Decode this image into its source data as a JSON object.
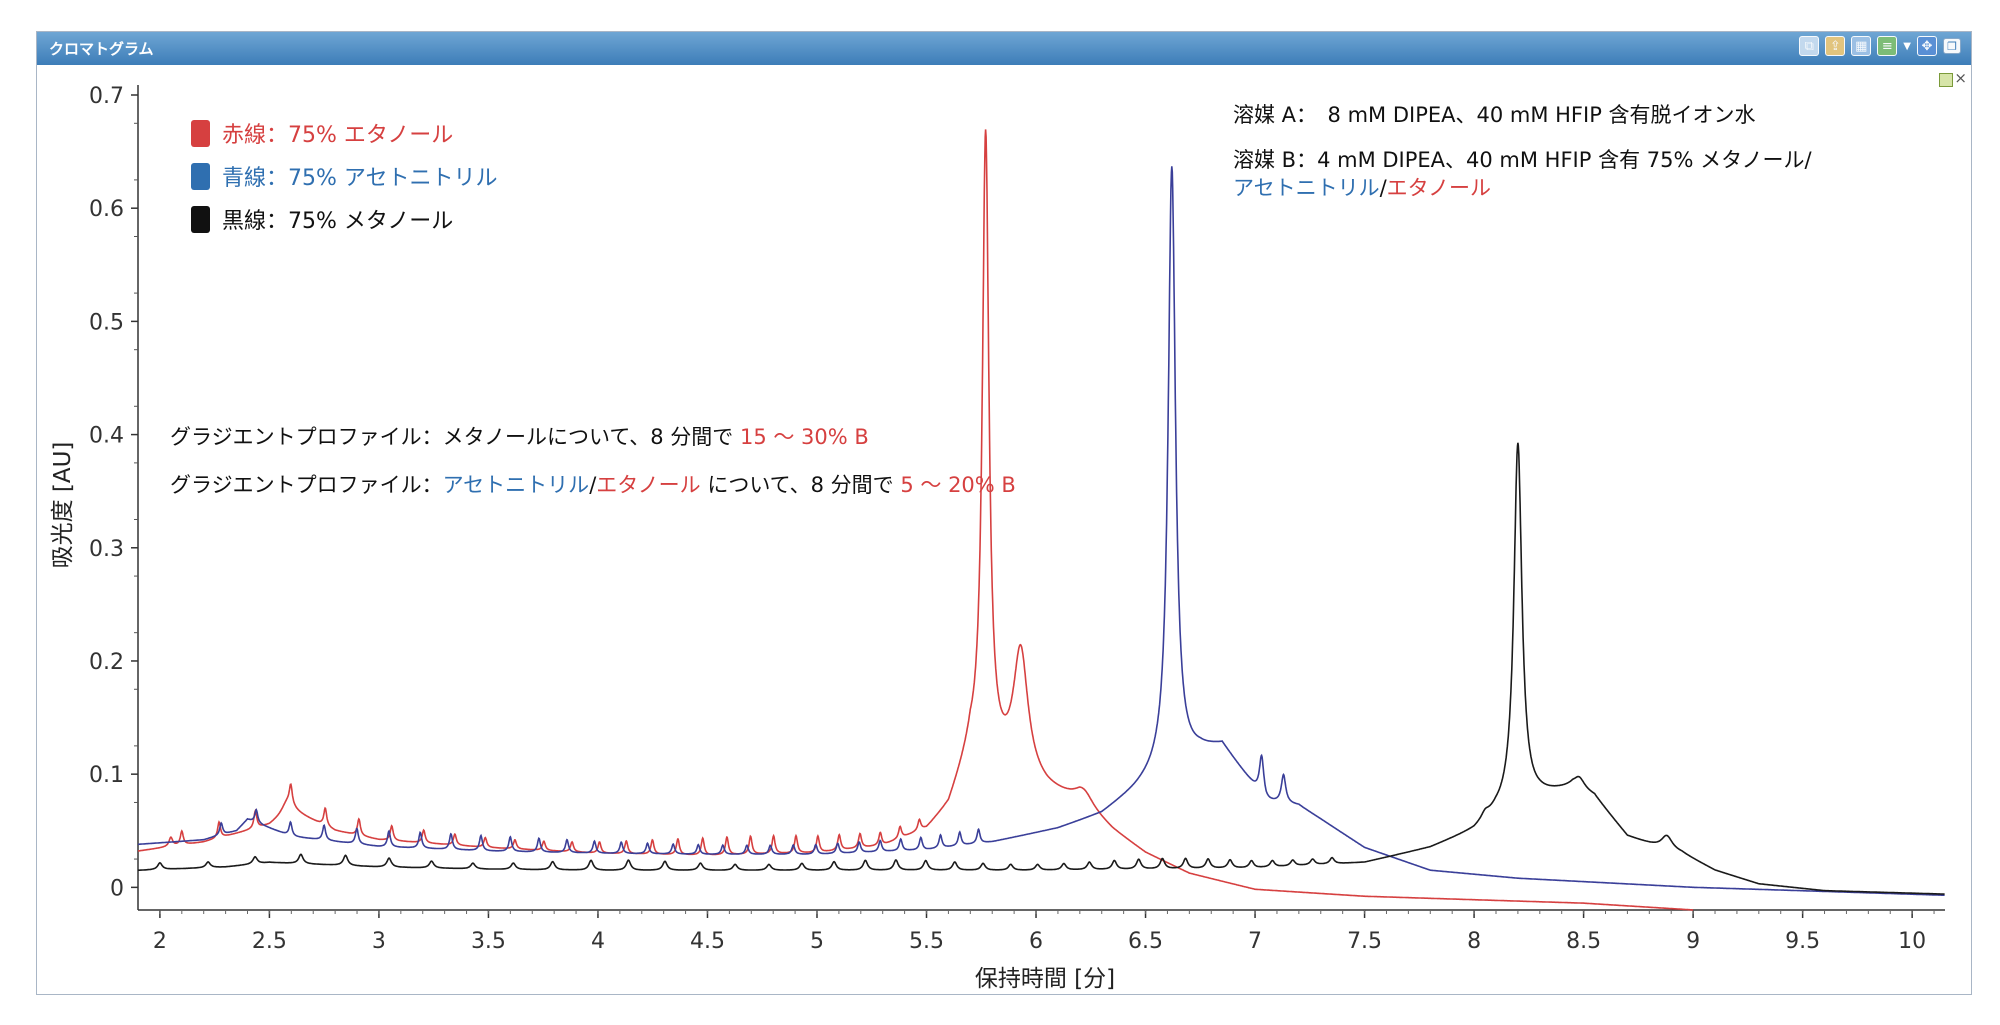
{
  "window": {
    "title": "クロマトグラム",
    "toolbar_icons": [
      "copy-icon",
      "export-icon",
      "table-icon",
      "layers-icon",
      "move-icon",
      "restore-icon"
    ]
  },
  "chart_data": {
    "type": "line",
    "xlabel": "保持時間 [分]",
    "ylabel": "吸光度 [AU]",
    "xlim": [
      1.9,
      10.15
    ],
    "ylim": [
      -0.02,
      0.7
    ],
    "x_ticks": [
      "2",
      "2.5",
      "3",
      "3.5",
      "4",
      "4.5",
      "5",
      "5.5",
      "6",
      "6.5",
      "7",
      "7.5",
      "8",
      "8.5",
      "9",
      "9.5",
      "10"
    ],
    "y_ticks": [
      "0",
      "0.1",
      "0.2",
      "0.3",
      "0.4",
      "0.5",
      "0.6",
      "0.7"
    ],
    "grid": false,
    "legend": {
      "placement": "top-left",
      "entries": [
        {
          "label": "赤線：75% エタノール",
          "color": "#d64040"
        },
        {
          "label": "青線：75% アセトニトリル",
          "color": "#2f6fb0"
        },
        {
          "label": "黒線：75% メタノール",
          "color": "#111111"
        }
      ]
    },
    "annotations": {
      "solvent_a": "溶媒 A：　8 mM DIPEA、40 mM HFIP 含有脱イオン水",
      "solvent_b_line1": "溶媒 B：4 mM DIPEA、40 mM HFIP 含有 75% メタノール/",
      "solvent_b_acn": "アセトニトリル",
      "solvent_b_slash": "/",
      "solvent_b_etoh": "エタノール",
      "gradient1_prefix": "グラジエントプロファイル：メタノールについて、8 分間で ",
      "gradient1_range": "15 ～ 30% B",
      "gradient2_prefix": "グラジエントプロファイル：",
      "gradient2_acn": "アセトニトリル",
      "gradient2_slash": "/",
      "gradient2_etoh": "エタノール",
      "gradient2_mid": " について、8 分間で ",
      "gradient2_range": "5 ～ 20% B"
    },
    "series": [
      {
        "color": "#d64040",
        "baseline": [
          [
            1.9,
            0.032
          ],
          [
            2.2,
            0.04
          ],
          [
            2.5,
            0.055
          ],
          [
            2.6,
            0.068
          ],
          [
            2.8,
            0.05
          ],
          [
            3.0,
            0.042
          ],
          [
            3.5,
            0.035
          ],
          [
            4.0,
            0.03
          ],
          [
            4.5,
            0.028
          ],
          [
            5.0,
            0.03
          ],
          [
            5.3,
            0.036
          ],
          [
            5.5,
            0.05
          ],
          [
            5.6,
            0.07
          ],
          [
            5.7,
            0.12
          ],
          [
            5.8,
            0.11
          ],
          [
            5.9,
            0.1
          ],
          [
            6.05,
            0.085
          ],
          [
            6.2,
            0.075
          ],
          [
            6.35,
            0.05
          ],
          [
            6.5,
            0.03
          ],
          [
            6.7,
            0.012
          ],
          [
            7.0,
            -0.002
          ],
          [
            7.5,
            -0.008
          ],
          [
            8.0,
            -0.011
          ],
          [
            8.5,
            -0.014
          ],
          [
            9.0,
            -0.02
          ]
        ],
        "peaks": [
          [
            5.77,
            0.55,
            0.018
          ],
          [
            5.93,
            0.11,
            0.04
          ],
          [
            6.22,
            0.012,
            0.05
          ],
          [
            2.05,
            0.008,
            0.01
          ],
          [
            2.58,
            0.01,
            0.03
          ]
        ]
      },
      {
        "color": "#3a3f99",
        "baseline": [
          [
            1.9,
            0.038
          ],
          [
            2.2,
            0.042
          ],
          [
            2.35,
            0.05
          ],
          [
            2.4,
            0.06
          ],
          [
            2.6,
            0.045
          ],
          [
            3.0,
            0.036
          ],
          [
            3.5,
            0.032
          ],
          [
            4.0,
            0.03
          ],
          [
            4.5,
            0.029
          ],
          [
            5.0,
            0.029
          ],
          [
            5.5,
            0.033
          ],
          [
            5.8,
            0.04
          ],
          [
            6.1,
            0.052
          ],
          [
            6.3,
            0.065
          ],
          [
            6.45,
            0.085
          ],
          [
            6.55,
            0.1
          ],
          [
            6.65,
            0.11
          ],
          [
            6.75,
            0.12
          ],
          [
            6.85,
            0.125
          ],
          [
            6.95,
            0.1
          ],
          [
            7.05,
            0.075
          ],
          [
            7.2,
            0.072
          ],
          [
            7.3,
            0.06
          ],
          [
            7.5,
            0.035
          ],
          [
            7.8,
            0.015
          ],
          [
            8.2,
            0.008
          ],
          [
            8.6,
            0.004
          ],
          [
            9.0,
            0.0
          ],
          [
            9.5,
            -0.003
          ],
          [
            10.15,
            -0.007
          ]
        ],
        "peaks": [
          [
            6.62,
            0.53,
            0.02
          ],
          [
            7.03,
            0.035,
            0.012
          ],
          [
            7.13,
            0.025,
            0.012
          ]
        ]
      },
      {
        "color": "#1a1a1a",
        "baseline": [
          [
            1.9,
            0.015
          ],
          [
            2.3,
            0.018
          ],
          [
            2.5,
            0.022
          ],
          [
            3.0,
            0.018
          ],
          [
            3.5,
            0.016
          ],
          [
            4.0,
            0.015
          ],
          [
            5.0,
            0.015
          ],
          [
            6.0,
            0.015
          ],
          [
            7.0,
            0.017
          ],
          [
            7.5,
            0.022
          ],
          [
            7.8,
            0.035
          ],
          [
            8.0,
            0.05
          ],
          [
            8.1,
            0.065
          ],
          [
            8.3,
            0.08
          ],
          [
            8.45,
            0.088
          ],
          [
            8.55,
            0.08
          ],
          [
            8.7,
            0.045
          ],
          [
            8.85,
            0.035
          ],
          [
            8.95,
            0.03
          ],
          [
            9.1,
            0.015
          ],
          [
            9.3,
            0.003
          ],
          [
            9.6,
            -0.003
          ],
          [
            10.15,
            -0.006
          ]
        ],
        "peaks": [
          [
            8.2,
            0.32,
            0.022
          ],
          [
            8.48,
            0.01,
            0.03
          ],
          [
            8.88,
            0.012,
            0.03
          ],
          [
            8.05,
            0.005,
            0.02
          ]
        ]
      }
    ]
  }
}
